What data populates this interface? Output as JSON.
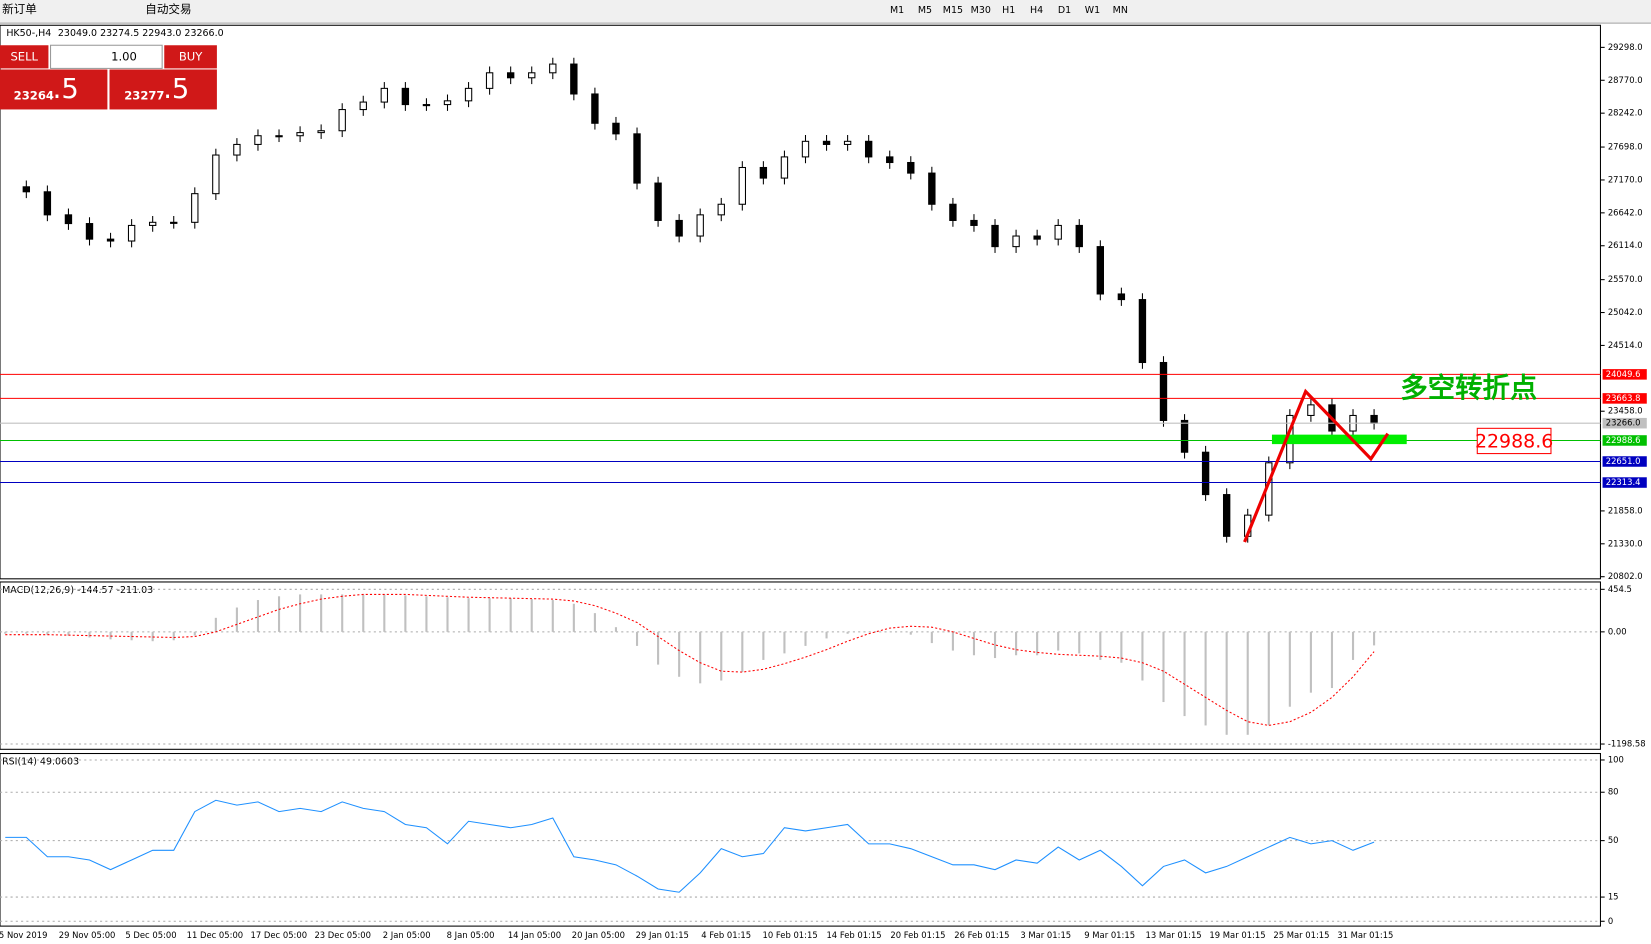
{
  "toolbar": {
    "order": "新订单",
    "auto_trade": "自动交易",
    "timeframes": [
      "M1",
      "M5",
      "M15",
      "M30",
      "H1",
      "H4",
      "D1",
      "W1",
      "MN"
    ]
  },
  "trade_panel": {
    "sell": "SELL",
    "buy": "BUY",
    "lots": "1.00",
    "bid_big": "23264",
    "bid_small": ".5",
    "ask_big": "23277",
    "ask_small": ".5"
  },
  "chart_data": [
    {
      "type": "candlestick",
      "title": "HK50-,H4",
      "ohlc_header": "23049.0 23274.5 22943.0 23266.0",
      "closes": [
        27060,
        26980,
        26610,
        26470,
        26220,
        26190,
        26440,
        26490,
        26490,
        26950,
        27570,
        27740,
        27880,
        27880,
        27930,
        27960,
        28300,
        28420,
        28640,
        28380,
        28380,
        28440,
        28640,
        28890,
        28810,
        28890,
        29030,
        28550,
        28080,
        27910,
        27120,
        26520,
        26270,
        26610,
        26780,
        27370,
        27200,
        27540,
        27790,
        27740,
        27790,
        27540,
        27450,
        27280,
        26780,
        26520,
        26440,
        26100,
        26270,
        26220,
        26440,
        26100,
        25340,
        25250,
        24240,
        23310,
        22800,
        22120,
        21450,
        21790,
        22630,
        23390,
        23560,
        23140,
        23390,
        23266
      ],
      "ylim": [
        20768,
        29653
      ],
      "yticks": [
        {
          "value": 29298,
          "label": "29298.0"
        },
        {
          "value": 28770,
          "label": "28770.0"
        },
        {
          "value": 28242,
          "label": "28242.0"
        },
        {
          "value": 27698,
          "label": "27698.0"
        },
        {
          "value": 27170,
          "label": "27170.0"
        },
        {
          "value": 26642,
          "label": "26642.0"
        },
        {
          "value": 26114,
          "label": "26114.0"
        },
        {
          "value": 25570,
          "label": "25570.0"
        },
        {
          "value": 25042,
          "label": "25042.0"
        },
        {
          "value": 24514,
          "label": "24514.0"
        },
        {
          "value": 23458,
          "label": "23458.0"
        },
        {
          "value": 21858,
          "label": "21858.0"
        },
        {
          "value": 21330,
          "label": "21330.0"
        },
        {
          "value": 20802,
          "label": "20802.0"
        }
      ],
      "levels": [
        {
          "value": 24049.6,
          "label": "24049.6",
          "color": "#ff0000"
        },
        {
          "value": 23663.8,
          "label": "23663.8",
          "color": "#ff0000"
        },
        {
          "value": 23266,
          "label": "23266.0",
          "color": "#c0c0c0"
        },
        {
          "value": 22988.6,
          "label": "22988.6",
          "color": "#00c000"
        },
        {
          "value": 22651,
          "label": "22651.0",
          "color": "#0000c0"
        },
        {
          "value": 22313.4,
          "label": "22313.4",
          "color": "#0000c0"
        }
      ],
      "annotation": "多空转折点",
      "annotation_price": {
        "value": 22988.6,
        "label": "22988.6"
      }
    },
    {
      "type": "macd",
      "title": "MACD(12,26,9) -144.57 -211.03",
      "histogram": [
        -20,
        -20,
        -30,
        -40,
        -60,
        -80,
        -90,
        -100,
        -90,
        -40,
        150,
        260,
        340,
        380,
        400,
        400,
        400,
        400,
        400,
        390,
        380,
        370,
        360,
        360,
        360,
        350,
        340,
        300,
        200,
        50,
        -150,
        -350,
        -480,
        -550,
        -520,
        -430,
        -300,
        -230,
        -150,
        -70,
        -20,
        0,
        0,
        -30,
        -120,
        -200,
        -250,
        -280,
        -250,
        -250,
        -200,
        -230,
        -300,
        -330,
        -520,
        -750,
        -900,
        -1000,
        -1100,
        -1100,
        -1000,
        -800,
        -650,
        -600,
        -300,
        -144.57
      ],
      "signal": [
        -30,
        -30,
        -30,
        -35,
        -40,
        -45,
        -50,
        -55,
        -60,
        -50,
        0,
        80,
        160,
        240,
        300,
        350,
        380,
        400,
        400,
        400,
        390,
        380,
        370,
        365,
        360,
        355,
        350,
        330,
        280,
        200,
        100,
        -50,
        -200,
        -330,
        -420,
        -430,
        -400,
        -340,
        -270,
        -190,
        -100,
        -20,
        40,
        60,
        50,
        0,
        -70,
        -140,
        -190,
        -220,
        -240,
        -250,
        -260,
        -280,
        -330,
        -420,
        -560,
        -700,
        -840,
        -960,
        -1000,
        -960,
        -860,
        -700,
        -480,
        -211.03
      ],
      "ylim": [
        -1255,
        533
      ],
      "yticks": [
        454.5,
        {
          "value": 0,
          "label": "0.00"
        },
        -1198.58
      ]
    },
    {
      "type": "rsi",
      "title": "RSI(14) 49.0603",
      "values": [
        52,
        52,
        40,
        40,
        38,
        32,
        38,
        44,
        44,
        68,
        75,
        72,
        74,
        68,
        70,
        68,
        74,
        70,
        68,
        60,
        58,
        48,
        62,
        60,
        58,
        60,
        64,
        40,
        38,
        35,
        28,
        20,
        18,
        30,
        45,
        40,
        42,
        58,
        56,
        58,
        60,
        48,
        48,
        45,
        40,
        35,
        35,
        32,
        38,
        36,
        46,
        38,
        44,
        34,
        22,
        34,
        38,
        30,
        34,
        40,
        46,
        52,
        48,
        50,
        44,
        49.0603
      ],
      "ylim": [
        -3,
        104
      ],
      "yticks": [
        100,
        80,
        50,
        15,
        0
      ]
    }
  ],
  "x_labels": [
    "5 Nov 2019",
    "29 Nov 05:00",
    "5 Dec 05:00",
    "11 Dec 05:00",
    "17 Dec 05:00",
    "23 Dec 05:00",
    "2 Jan 05:00",
    "8 Jan 05:00",
    "14 Jan 05:00",
    "20 Jan 05:00",
    "29 Jan 01:15",
    "4 Feb 01:15",
    "10 Feb 01:15",
    "14 Feb 01:15",
    "20 Feb 01:15",
    "26 Feb 01:15",
    "3 Mar 01:15",
    "9 Mar 01:15",
    "13 Mar 01:15",
    "19 Mar 01:15",
    "25 Mar 01:15",
    "31 Mar 01:15"
  ]
}
